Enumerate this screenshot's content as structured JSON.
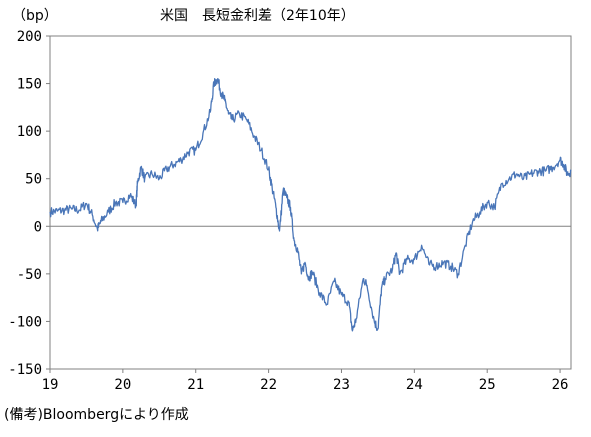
{
  "chart_data": {
    "type": "line",
    "title": "米国　長短金利差（2年10年）",
    "ylabel": "（bp）",
    "xlabel": "",
    "ylim": [
      -150,
      200
    ],
    "yticks": [
      200,
      150,
      100,
      50,
      0,
      -50,
      -100,
      -150
    ],
    "xlim": [
      2019.0,
      2026.15
    ],
    "xticks": [
      {
        "label": "19",
        "value": 2019
      },
      {
        "label": "20",
        "value": 2020
      },
      {
        "label": "21",
        "value": 2021
      },
      {
        "label": "22",
        "value": 2022
      },
      {
        "label": "23",
        "value": 2023
      },
      {
        "label": "24",
        "value": 2024
      },
      {
        "label": "25",
        "value": 2025
      },
      {
        "label": "26",
        "value": 2026
      }
    ],
    "grid": false,
    "zero_line": true,
    "line_color": "#4a76b8",
    "series": [
      {
        "x": [
          2019.0,
          2019.1,
          2019.2,
          2019.3,
          2019.4,
          2019.5,
          2019.58,
          2019.65,
          2019.7,
          2019.8,
          2019.9,
          2020.0,
          2020.1,
          2020.18,
          2020.2,
          2020.25,
          2020.3,
          2020.4,
          2020.5,
          2020.6,
          2020.7,
          2020.8,
          2020.9,
          2021.0,
          2021.1,
          2021.2,
          2021.25,
          2021.3,
          2021.35,
          2021.4,
          2021.45,
          2021.5,
          2021.6,
          2021.7,
          2021.8,
          2021.9,
          2022.0,
          2022.05,
          2022.1,
          2022.15,
          2022.2,
          2022.25,
          2022.3,
          2022.35,
          2022.4,
          2022.45,
          2022.5,
          2022.55,
          2022.6,
          2022.7,
          2022.8,
          2022.9,
          2023.0,
          2023.1,
          2023.15,
          2023.2,
          2023.3,
          2023.35,
          2023.45,
          2023.5,
          2023.55,
          2023.6,
          2023.7,
          2023.75,
          2023.8,
          2023.9,
          2024.0,
          2024.1,
          2024.2,
          2024.3,
          2024.4,
          2024.5,
          2024.6,
          2024.7,
          2024.8,
          2024.9,
          2025.0,
          2025.1,
          2025.2,
          2025.3,
          2025.4,
          2025.5,
          2025.6,
          2025.7,
          2025.8,
          2025.9,
          2026.0,
          2026.05,
          2026.1,
          2026.15
        ],
        "y": [
          15,
          16,
          17,
          18,
          17,
          24,
          12,
          -3,
          5,
          15,
          25,
          25,
          33,
          22,
          45,
          62,
          50,
          55,
          50,
          60,
          65,
          70,
          78,
          80,
          98,
          120,
          150,
          155,
          140,
          132,
          118,
          112,
          118,
          112,
          95,
          80,
          60,
          40,
          20,
          -5,
          38,
          30,
          20,
          -15,
          -25,
          -50,
          -38,
          -55,
          -48,
          -70,
          -82,
          -58,
          -72,
          -80,
          -110,
          -98,
          -55,
          -62,
          -100,
          -108,
          -65,
          -55,
          -45,
          -28,
          -50,
          -35,
          -35,
          -20,
          -40,
          -42,
          -38,
          -42,
          -50,
          -20,
          5,
          15,
          25,
          20,
          45,
          50,
          55,
          50,
          55,
          58,
          58,
          62,
          70,
          65,
          55,
          58
        ]
      }
    ]
  },
  "source_note": "(備考)Bloombergにより作成"
}
